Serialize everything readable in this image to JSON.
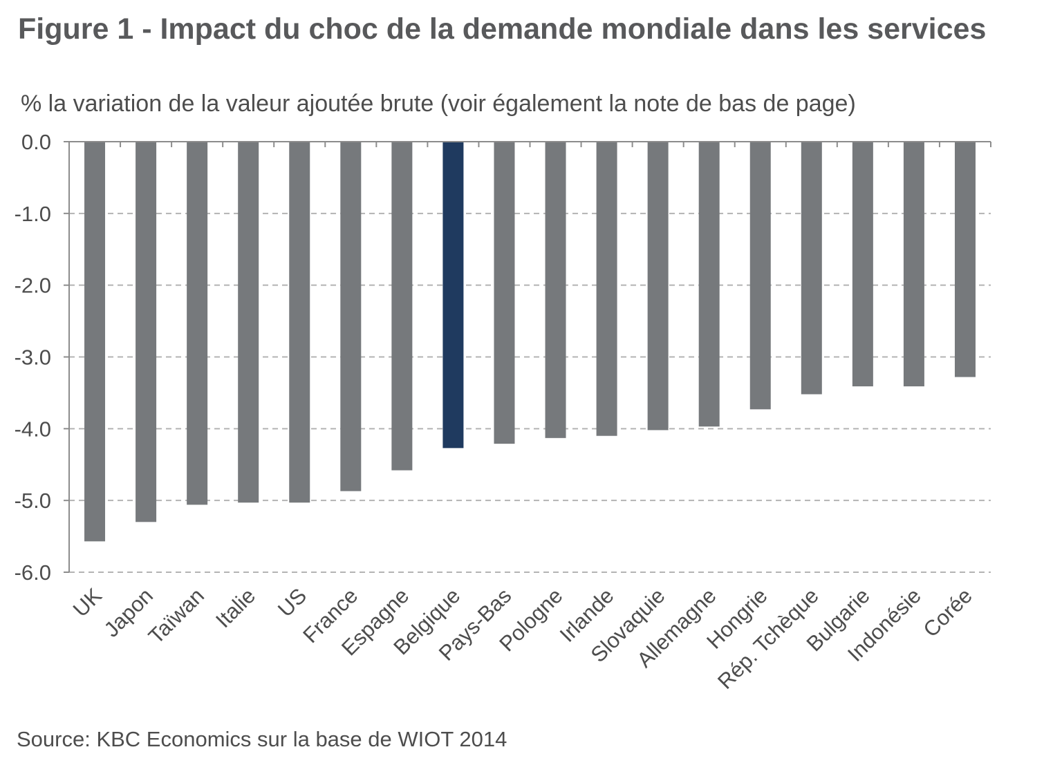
{
  "title": "Figure 1 - Impact du choc de la demande mondiale dans les services",
  "subtitle": "% la variation de la valeur ajoutée brute (voir également la note de bas de page)",
  "source": "Source: KBC Economics sur la base de WIOT 2014",
  "colors": {
    "bar": "#76797c",
    "highlight": "#1f3a5f",
    "grid": "#b3b3b3",
    "axis": "#8c8c8c"
  },
  "chart_data": {
    "type": "bar",
    "categories": [
      "UK",
      "Japon",
      "Taïwan",
      "Italie",
      "US",
      "France",
      "Espagne",
      "Belgique",
      "Pays-Bas",
      "Pologne",
      "Irlande",
      "Slovaquie",
      "Allemagne",
      "Hongrie",
      "Rép. Tchèque",
      "Bulgarie",
      "Indonésie",
      "Corée"
    ],
    "values": [
      -5.57,
      -5.3,
      -5.06,
      -5.03,
      -5.03,
      -4.87,
      -4.58,
      -4.27,
      -4.21,
      -4.13,
      -4.1,
      -4.02,
      -3.97,
      -3.73,
      -3.52,
      -3.41,
      -3.41,
      -3.28
    ],
    "highlight_category": "Belgique",
    "yticks": [
      "0.0",
      "-1.0",
      "-2.0",
      "-3.0",
      "-4.0",
      "-5.0",
      "-6.0"
    ],
    "ylim": [
      -6,
      0
    ],
    "grid": true,
    "grid_style": "dashed"
  }
}
